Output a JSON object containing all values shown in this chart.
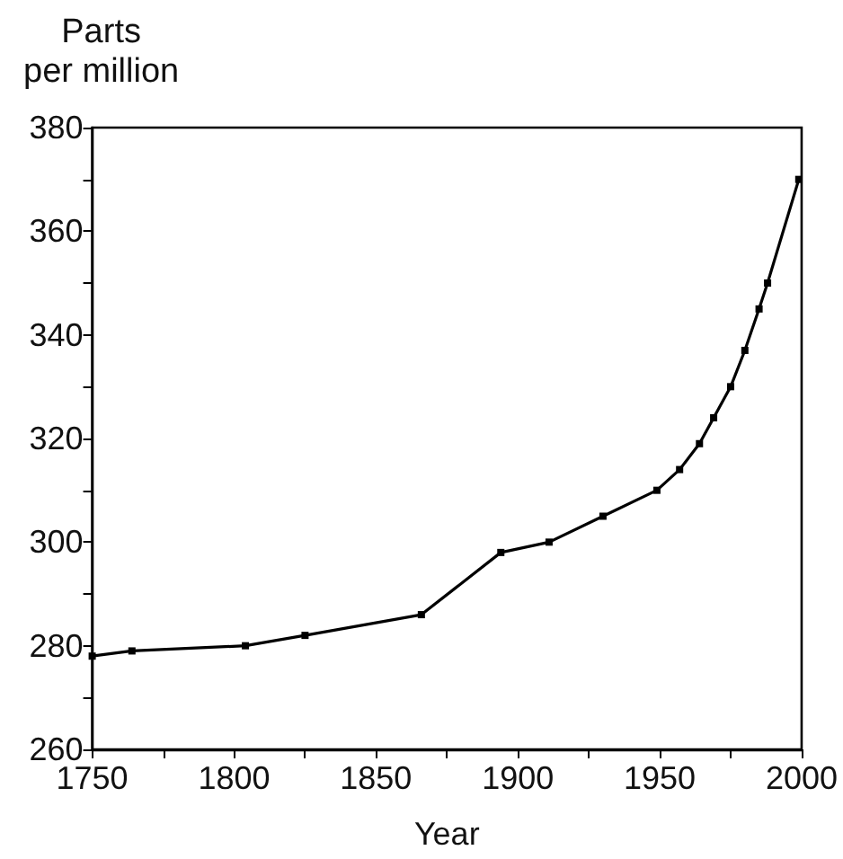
{
  "chart_data": {
    "type": "line",
    "xlabel": "Year",
    "ylabel": "Parts\nper million",
    "x": [
      1750,
      1764,
      1804,
      1825,
      1866,
      1894,
      1911,
      1930,
      1949,
      1957,
      1964,
      1969,
      1975,
      1980,
      1985,
      1988,
      1999
    ],
    "series": [
      {
        "color": "#000000",
        "values": [
          278,
          279,
          280,
          282,
          286,
          298,
          300,
          305,
          310,
          314,
          319,
          324,
          330,
          337,
          345,
          350,
          370
        ]
      }
    ],
    "xlim": [
      1750,
      2000
    ],
    "xticks": [
      1750,
      {
        "value": 1775,
        "label": null
      },
      1800,
      {
        "value": 1825,
        "label": null
      },
      1850,
      {
        "value": 1875,
        "label": null
      },
      1900,
      {
        "value": 1925,
        "label": null
      },
      1950,
      {
        "value": 1975,
        "label": null
      },
      2000
    ],
    "ylim": [
      260,
      380
    ],
    "yticks": [
      260,
      {
        "value": 270,
        "label": null
      },
      280,
      {
        "value": 290,
        "label": null
      },
      300,
      {
        "value": 310,
        "label": null
      },
      320,
      {
        "value": 330,
        "label": null
      },
      340,
      {
        "value": 350,
        "label": null
      },
      360,
      {
        "value": 370,
        "label": null
      },
      380
    ],
    "marker": "square",
    "line_style": "solid"
  }
}
